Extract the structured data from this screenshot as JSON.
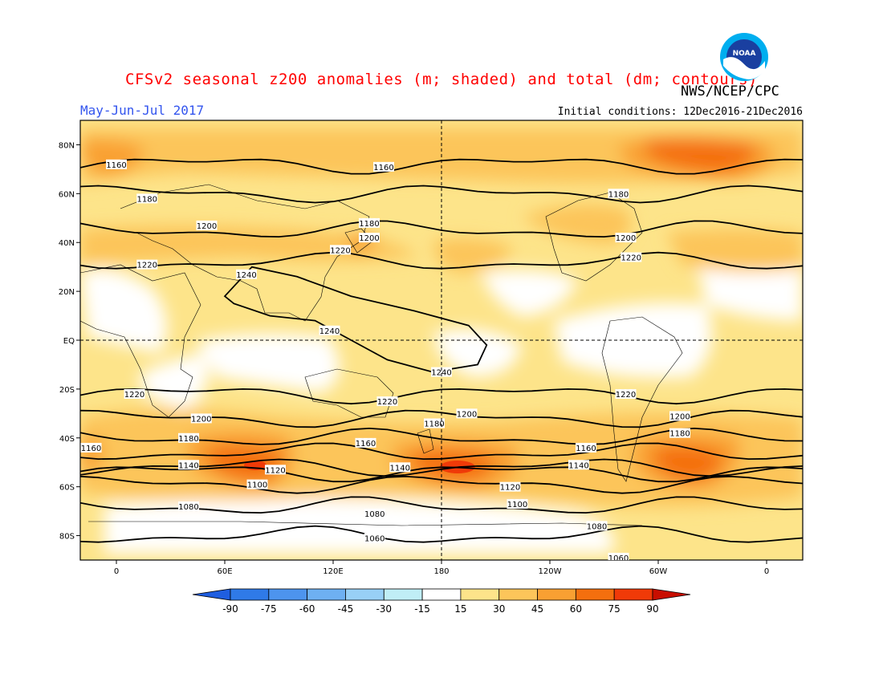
{
  "title": "CFSv2 seasonal z200 anomalies (m; shaded) and total (dm; contours)",
  "period": "May-Jun-Jul 2017",
  "initial_conditions": "Initial conditions: 12Dec2016-21Dec2016",
  "agency": "NWS/NCEP/CPC",
  "logo": {
    "name": "noaa-logo",
    "text": "NOAA"
  },
  "axes": {
    "lat_labels": [
      "80N",
      "60N",
      "40N",
      "20N",
      "EQ",
      "20S",
      "40S",
      "60S",
      "80S"
    ],
    "lat_values": [
      80,
      60,
      40,
      20,
      0,
      -20,
      -40,
      -60,
      -80
    ],
    "lon_labels": [
      "0",
      "60E",
      "120E",
      "180",
      "120W",
      "60W",
      "0"
    ],
    "lon_values": [
      0,
      60,
      120,
      180,
      240,
      300,
      360
    ],
    "lon_range": [
      -20,
      380
    ],
    "lat_range": [
      -90,
      90
    ]
  },
  "colorbar": {
    "levels": [
      "-90",
      "-75",
      "-60",
      "-45",
      "-30",
      "-15",
      "15",
      "30",
      "45",
      "60",
      "75",
      "90"
    ],
    "colors": [
      "#1f5ee0",
      "#2f7ae8",
      "#4d94ee",
      "#6eb0f2",
      "#98d0f6",
      "#c0eef6",
      "#ffffff",
      "#fde48a",
      "#fcc55a",
      "#f9a032",
      "#f46f0e",
      "#f03a08",
      "#c80e00"
    ]
  },
  "contours": [
    {
      "label": "1160",
      "lat": 72,
      "labels_at": [
        [
          0,
          72
        ],
        [
          148,
          71
        ]
      ]
    },
    {
      "label": "1180",
      "lat": 60,
      "labels_at": [
        [
          17,
          58
        ],
        [
          140,
          48
        ],
        [
          278,
          60
        ]
      ]
    },
    {
      "label": "1200",
      "lat": 45,
      "labels_at": [
        [
          50,
          47
        ],
        [
          140,
          42
        ],
        [
          282,
          42
        ]
      ]
    },
    {
      "label": "1220",
      "lat": 32,
      "labels_at": [
        [
          17,
          31
        ],
        [
          124,
          37
        ],
        [
          285,
          34
        ]
      ]
    },
    {
      "label": "1240",
      "lat": 18,
      "labels_at": [
        [
          72,
          27
        ],
        [
          118,
          4
        ],
        [
          180,
          -13
        ]
      ]
    },
    {
      "label": "1220",
      "lat": -22,
      "labels_at": [
        [
          10,
          -22
        ],
        [
          150,
          -25
        ],
        [
          282,
          -22
        ]
      ]
    },
    {
      "label": "1200",
      "lat": -32,
      "labels_at": [
        [
          47,
          -32
        ],
        [
          194,
          -30
        ],
        [
          312,
          -31
        ]
      ]
    },
    {
      "label": "1180",
      "lat": -40,
      "labels_at": [
        [
          40,
          -40
        ],
        [
          176,
          -34
        ],
        [
          312,
          -38
        ]
      ]
    },
    {
      "label": "1160",
      "lat": -46,
      "labels_at": [
        [
          -14,
          -44
        ],
        [
          138,
          -42
        ],
        [
          260,
          -44
        ]
      ]
    },
    {
      "label": "1140",
      "lat": -52,
      "labels_at": [
        [
          40,
          -51
        ],
        [
          157,
          -52
        ],
        [
          256,
          -51
        ]
      ]
    },
    {
      "label": "1120",
      "lat": -54,
      "labels_at": [
        [
          88,
          -53
        ],
        [
          218,
          -60
        ]
      ]
    },
    {
      "label": "1100",
      "lat": -59,
      "labels_at": [
        [
          78,
          -59
        ],
        [
          222,
          -67
        ]
      ]
    },
    {
      "label": "1080",
      "lat": -68,
      "labels_at": [
        [
          40,
          -68
        ],
        [
          143,
          -71
        ],
        [
          266,
          -76
        ]
      ]
    },
    {
      "label": "1060",
      "lat": -80,
      "labels_at": [
        [
          143,
          -81
        ],
        [
          278,
          -89
        ]
      ]
    }
  ]
}
